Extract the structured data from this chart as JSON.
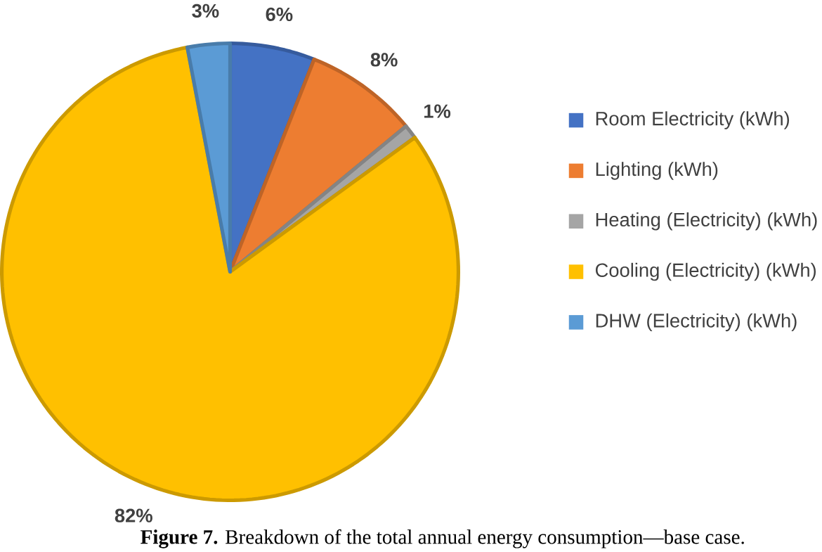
{
  "chart_data": {
    "type": "pie",
    "categories": [
      "Room Electricity (kWh)",
      "Lighting (kWh)",
      "Heating (Electricity) (kWh)",
      "Cooling (Electricity) (kWh)",
      "DHW (Electricity) (kWh)"
    ],
    "values": [
      6,
      8,
      1,
      82,
      3
    ],
    "colors": [
      "#4472c4",
      "#ed7d31",
      "#a5a5a5",
      "#ffc000",
      "#5b9bd5"
    ],
    "value_labels": [
      "6%",
      "8%",
      "1%",
      "82%",
      "3%"
    ],
    "legend": "right",
    "annotations": [
      "**Figure 7.**  Breakdown of the total annual energy consumption—base case."
    ]
  }
}
